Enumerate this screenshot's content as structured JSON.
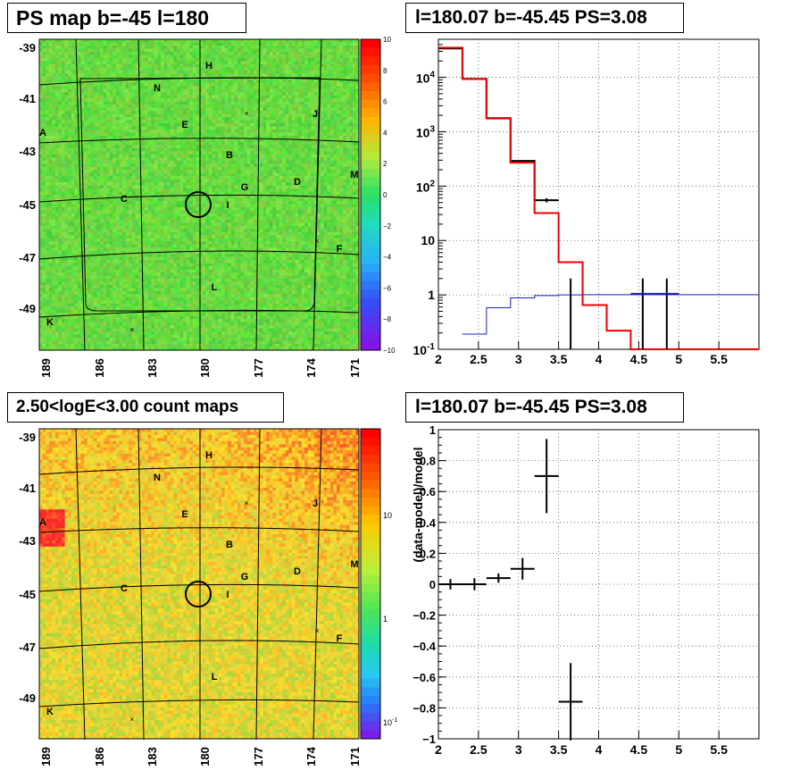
{
  "panels": {
    "ps_map": {
      "title": "PS map b=-45 l=180"
    },
    "spectrum": {
      "title": "l=180.07 b=-45.45 PS=3.08"
    },
    "count_map": {
      "title": "2.50<logE<3.00 count maps"
    },
    "residual": {
      "title": "l=180.07 b=-45.45 PS=3.08"
    }
  },
  "chart_data": [
    {
      "type": "heatmap",
      "title": "PS map b=-45 l=180",
      "x_ticks": [
        "189",
        "186",
        "183",
        "180",
        "177",
        "174",
        "171"
      ],
      "y_ticks": [
        "-39",
        "-41",
        "-43",
        "-45",
        "-47",
        "-49"
      ],
      "colorbar_ticks": [
        "10",
        "8",
        "6",
        "4",
        "2",
        "0",
        "−2",
        "−4",
        "−6",
        "−8",
        "−10"
      ],
      "zlim": [
        -10,
        10
      ],
      "source_labels": [
        "H",
        "N",
        "J",
        "E",
        "A",
        "B",
        "M",
        "D",
        "G",
        "C",
        "I",
        "F",
        "L",
        "K"
      ],
      "marked_position": {
        "l": 180.07,
        "b": -45.45
      }
    },
    {
      "type": "line",
      "title": "l=180.07 b=-45.45 PS=3.08",
      "xlim": [
        2,
        6
      ],
      "ylim": [
        0.1,
        50000
      ],
      "ylog": true,
      "grid": true,
      "x_ticks": [
        "2",
        "2.5",
        "3",
        "3.5",
        "4",
        "4.5",
        "5",
        "5.5"
      ],
      "y_ticks": [
        "10^-1",
        "1",
        "10",
        "10^2",
        "10^3",
        "10^4"
      ],
      "series": [
        {
          "color": "#ee0000",
          "bins": [
            [
              2.0,
              2.3,
              35000
            ],
            [
              2.3,
              2.6,
              9300
            ],
            [
              2.6,
              2.9,
              1750
            ],
            [
              2.9,
              3.2,
              270
            ],
            [
              3.2,
              3.5,
              32
            ],
            [
              3.5,
              3.8,
              4
            ],
            [
              3.8,
              4.1,
              0.65
            ],
            [
              4.1,
              4.4,
              0.22
            ],
            [
              4.4,
              6.0,
              0.1
            ]
          ]
        },
        {
          "color": "#1c20b8",
          "bins": [
            [
              2.3,
              2.6,
              0.19
            ],
            [
              2.6,
              2.9,
              0.58
            ],
            [
              2.9,
              3.2,
              0.88
            ],
            [
              3.2,
              3.5,
              0.97
            ],
            [
              3.5,
              3.8,
              1.0
            ],
            [
              3.8,
              6.0,
              1.01
            ]
          ]
        },
        {
          "color": "#000000",
          "bins": [
            [
              2.0,
              2.3,
              34000
            ],
            [
              2.3,
              2.6,
              9400
            ],
            [
              2.6,
              2.9,
              1780
            ],
            [
              2.9,
              3.2,
              290
            ],
            [
              3.2,
              3.5,
              55
            ]
          ],
          "errors": [
            [
              3.35,
              55,
              50,
              60
            ]
          ]
        },
        {
          "color": "#000000",
          "upper_points": [
            [
              3.65,
              2.0
            ],
            [
              4.55,
              2.0
            ],
            [
              4.85,
              2.0
            ]
          ],
          "bins": [
            [
              4.4,
              4.7,
              1.05
            ],
            [
              4.7,
              5.0,
              1.05
            ]
          ]
        }
      ]
    },
    {
      "type": "heatmap",
      "title": "2.50<logE<3.00 count maps",
      "x_ticks": [
        "189",
        "186",
        "183",
        "180",
        "177",
        "174",
        "171"
      ],
      "y_ticks": [
        "-39",
        "-41",
        "-43",
        "-45",
        "-47",
        "-49"
      ],
      "colorbar_ticks": [
        "10",
        "1",
        "10^-1"
      ],
      "zlog": true,
      "source_labels": [
        "H",
        "N",
        "J",
        "E",
        "A",
        "B",
        "M",
        "D",
        "G",
        "C",
        "I",
        "F",
        "L",
        "K"
      ]
    },
    {
      "type": "scatter",
      "title": "l=180.07 b=-45.45 PS=3.08",
      "ylabel": "(data-model)/model",
      "xlim": [
        2,
        6
      ],
      "ylim": [
        -1,
        1
      ],
      "grid": true,
      "x_ticks": [
        "2",
        "2.5",
        "3",
        "3.5",
        "4",
        "4.5",
        "5",
        "5.5"
      ],
      "y_ticks": [
        "1",
        "0.8",
        "0.6",
        "0.4",
        "0.2",
        "0",
        "−0.2",
        "−0.4",
        "−0.6",
        "−0.8",
        "−1"
      ],
      "points": [
        {
          "x": 2.15,
          "y": 0.0,
          "xerr": 0.15,
          "yerr": 0.005
        },
        {
          "x": 2.45,
          "y": 0.0,
          "xerr": 0.15,
          "yerr": 0.01
        },
        {
          "x": 2.75,
          "y": 0.04,
          "xerr": 0.15,
          "yerr": 0.03
        },
        {
          "x": 3.05,
          "y": 0.1,
          "xerr": 0.15,
          "yerr": 0.07
        },
        {
          "x": 3.35,
          "y": 0.7,
          "xerr": 0.15,
          "yerr": 0.24
        },
        {
          "x": 3.65,
          "y": -0.76,
          "xerr": 0.15,
          "yerr": 0.25
        }
      ]
    }
  ]
}
